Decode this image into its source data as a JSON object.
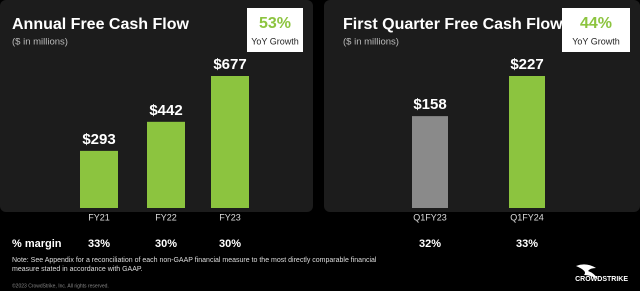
{
  "chart_data": [
    {
      "type": "bar",
      "title": "Annual Free Cash Flow",
      "subtitle": "($ in millions)",
      "annotation": "53%",
      "annotation_caption": "YoY Growth",
      "categories": [
        "FY21",
        "FY22",
        "FY23"
      ],
      "values": [
        293,
        442,
        677
      ],
      "value_labels": [
        "$293",
        "$442",
        "$677"
      ],
      "colors": [
        "#8cc43f",
        "#8cc43f",
        "#8cc43f"
      ],
      "margin_labels": [
        "33%",
        "30%",
        "30%"
      ]
    },
    {
      "type": "bar",
      "title": "First Quarter Free Cash Flow",
      "subtitle": "($ in millions)",
      "annotation": "44%",
      "annotation_caption": "YoY Growth",
      "categories": [
        "Q1FY23",
        "Q1FY24"
      ],
      "values": [
        158,
        227
      ],
      "value_labels": [
        "$158",
        "$227"
      ],
      "colors": [
        "#8a8a8a",
        "#8cc43f"
      ],
      "margin_labels": [
        "32%",
        "33%"
      ]
    }
  ],
  "margin_title": "% margin",
  "note": "Note: See Appendix for a reconciliation of each non-GAAP financial measure to the most directly comparable financial measure stated in accordance with GAAP.",
  "footer": "©2023 CrowdStrike, Inc. All rights reserved.",
  "logo": "CROWDSTRIKE"
}
